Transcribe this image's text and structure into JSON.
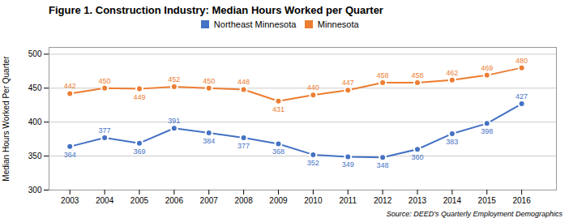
{
  "chart_data": {
    "type": "line",
    "title": "Figure 1.  Construction Industry: Median Hours Worked per Quarter",
    "ylabel": "Median Hours Worked Per Quarter",
    "annotations": [
      "Source:  DEED's Quarterly Employment Demographics"
    ],
    "x": [
      2003,
      2004,
      2005,
      2006,
      2007,
      2008,
      2009,
      2010,
      2011,
      2012,
      2013,
      2014,
      2015,
      2016
    ],
    "series": [
      {
        "name": "Northeast Minnesota",
        "color": "#4472C4",
        "values": [
          364,
          377,
          369,
          391,
          384,
          377,
          368,
          352,
          349,
          348,
          360,
          383,
          398,
          427
        ]
      },
      {
        "name": "Minnesota",
        "color": "#ED7D31",
        "values": [
          442,
          450,
          449,
          452,
          450,
          448,
          431,
          440,
          447,
          458,
          458,
          462,
          469,
          480
        ]
      }
    ],
    "xlim": [
      2002.4,
      2017
    ],
    "xticks": [
      2003,
      2004,
      2005,
      2006,
      2007,
      2008,
      2009,
      2010,
      2011,
      2012,
      2013,
      2014,
      2015,
      2016
    ],
    "ylim": [
      300,
      510
    ],
    "yticks": [
      300,
      350,
      400,
      450,
      500
    ],
    "grid": "y",
    "legend": "top",
    "data_labels": true,
    "marker": "circle"
  }
}
